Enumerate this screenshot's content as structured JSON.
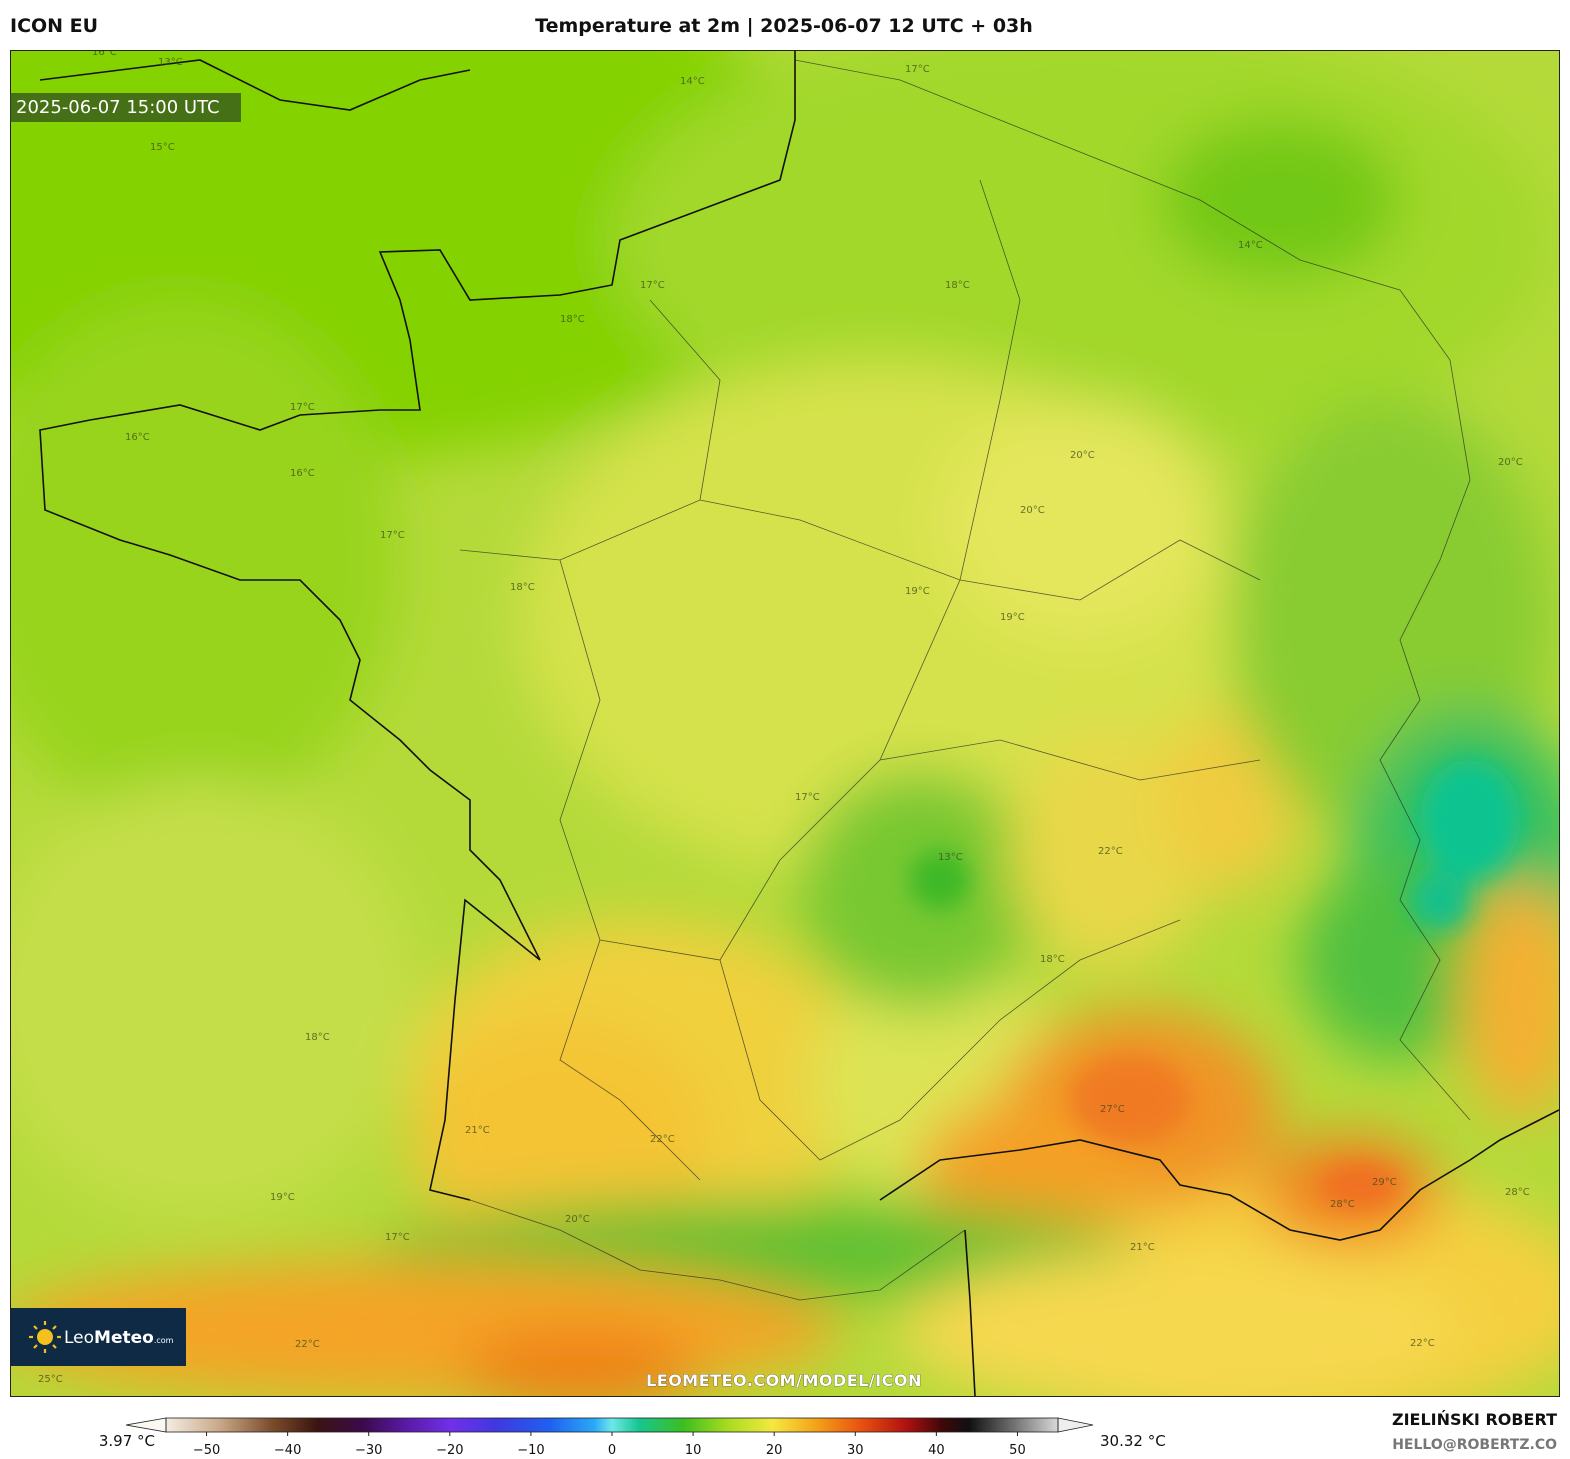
{
  "header": {
    "model": "ICON EU",
    "title": "Temperature at 2m | 2025-06-07 12 UTC + 03h"
  },
  "map": {
    "valid_time": "2025-06-07 15:00 UTC",
    "logo": {
      "brand_light": "Leo",
      "brand_bold": "Meteo",
      "suffix": ".com"
    },
    "watermark": "LEOMETEO.COM/MODEL/ICON",
    "contour_labels": [
      "13°C",
      "14°C",
      "15°C",
      "17°C",
      "16°C",
      "17°C",
      "18°C",
      "16°C",
      "16°C",
      "17°C",
      "17°C",
      "18°C",
      "20°C",
      "20°C",
      "19°C",
      "19°C",
      "18°C",
      "17°C",
      "22°C",
      "13°C",
      "18°C",
      "21°C",
      "22°C",
      "27°C",
      "29°C",
      "28°C",
      "21°C",
      "22°C",
      "28°C",
      "25°C",
      "22°C",
      "19°C",
      "20°C",
      "17°C",
      "18°C",
      "14°C",
      "20°C"
    ]
  },
  "colorbar": {
    "range": [
      -55,
      55
    ],
    "ticks": [
      {
        "value": -50,
        "label": "−50"
      },
      {
        "value": -40,
        "label": "−40"
      },
      {
        "value": -30,
        "label": "−30"
      },
      {
        "value": -20,
        "label": "−20"
      },
      {
        "value": -10,
        "label": "−10"
      },
      0,
      10,
      20,
      30,
      40,
      50
    ],
    "min_label": "3.97 °C",
    "max_label": "30.32 °C"
  },
  "footer": {
    "author": "ZIELIŃSKI ROBERT",
    "email": "HELLO@ROBERTZ.CO"
  }
}
